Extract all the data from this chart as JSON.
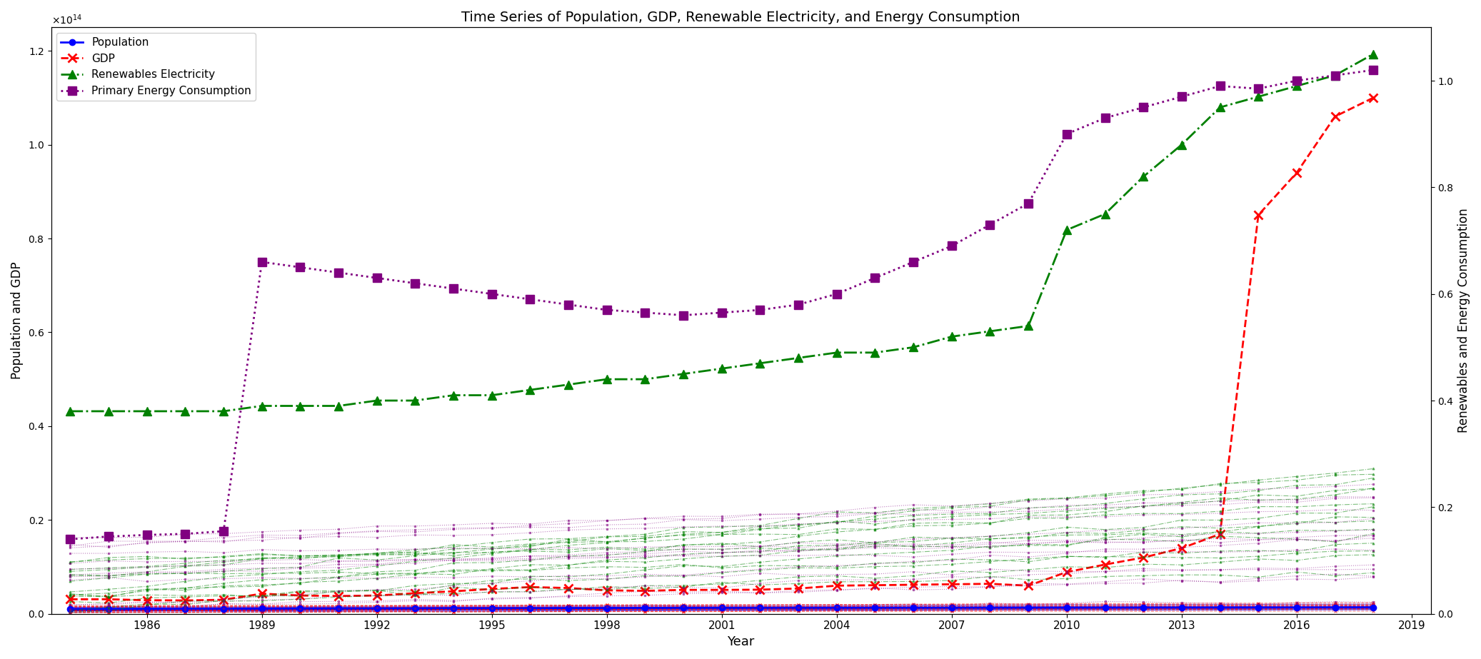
{
  "title": "Time Series of Population, GDP, Renewable Electricity, and Energy Consumption",
  "xlabel": "Year",
  "ylabel_left": "Population and GDP",
  "ylabel_right": "Renewables and Energy Consumption",
  "years_full": [
    1984,
    1985,
    1986,
    1987,
    1988,
    1989,
    1990,
    1991,
    1992,
    1993,
    1994,
    1995,
    1996,
    1997,
    1998,
    1999,
    2000,
    2001,
    2002,
    2003,
    2004,
    2005,
    2006,
    2007,
    2008,
    2009,
    2010,
    2011,
    2012,
    2013,
    2014,
    2015,
    2016,
    2017,
    2018
  ],
  "population_large": [
    1040000000000.0,
    1050000000000.0,
    1070000000000.0,
    1080000000000.0,
    1090000000000.0,
    1110000000000.0,
    1130000000000.0,
    1150000000000.0,
    1170000000000.0,
    1180000000000.0,
    1200000000000.0,
    1210000000000.0,
    1220000000000.0,
    1230000000000.0,
    1250000000000.0,
    1260000000000.0,
    1270000000000.0,
    1280000000000.0,
    1290000000000.0,
    1300000000000.0,
    1300000000000.0,
    1310000000000.0,
    1310000000000.0,
    1320000000000.0,
    1330000000000.0,
    1340000000000.0,
    1340000000000.0,
    1350000000000.0,
    1350000000000.0,
    1360000000000.0,
    1370000000000.0,
    1370000000000.0,
    1380000000000.0,
    1390000000000.0,
    1400000000000.0
  ],
  "gdp_large": [
    3100000000000.0,
    3100000000000.0,
    2900000000000.0,
    2850000000000.0,
    3000000000000.0,
    4300000000000.0,
    3900000000000.0,
    3800000000000.0,
    3900000000000.0,
    4400000000000.0,
    4800000000000.0,
    5300000000000.0,
    5700000000000.0,
    5500000000000.0,
    5000000000000.0,
    4900000000000.0,
    5100000000000.0,
    5100000000000.0,
    5150000000000.0,
    5400000000000.0,
    6000000000000.0,
    6100000000000.0,
    6200000000000.0,
    6300000000000.0,
    6400000000000.0,
    6000000000000.0,
    8900000000000.0,
    10500000000000.0,
    12000000000000.0,
    14000000000000.0,
    17000000000000.0,
    85000000000000.0,
    94000000000000.0,
    106000000000000.0,
    110000000000000.0
  ],
  "renewables_large": [
    0.38,
    0.38,
    0.38,
    0.38,
    0.38,
    0.39,
    0.39,
    0.39,
    0.4,
    0.4,
    0.41,
    0.41,
    0.42,
    0.43,
    0.44,
    0.44,
    0.45,
    0.46,
    0.47,
    0.48,
    0.49,
    0.49,
    0.5,
    0.52,
    0.53,
    0.54,
    0.72,
    0.75,
    0.82,
    0.88,
    0.95,
    0.97,
    0.99,
    1.01,
    1.05
  ],
  "energy_large": [
    0.14,
    0.145,
    0.148,
    0.15,
    0.155,
    0.66,
    0.65,
    0.64,
    0.63,
    0.62,
    0.61,
    0.6,
    0.59,
    0.58,
    0.57,
    0.565,
    0.56,
    0.565,
    0.57,
    0.58,
    0.6,
    0.63,
    0.66,
    0.69,
    0.73,
    0.77,
    0.9,
    0.93,
    0.95,
    0.97,
    0.99,
    0.985,
    1.0,
    1.01,
    1.02
  ],
  "n_small_series": 15,
  "background_color": "#ffffff",
  "pop_color": "#0000ff",
  "gdp_color": "#ff0000",
  "ren_color": "#008000",
  "ene_color": "#800080"
}
